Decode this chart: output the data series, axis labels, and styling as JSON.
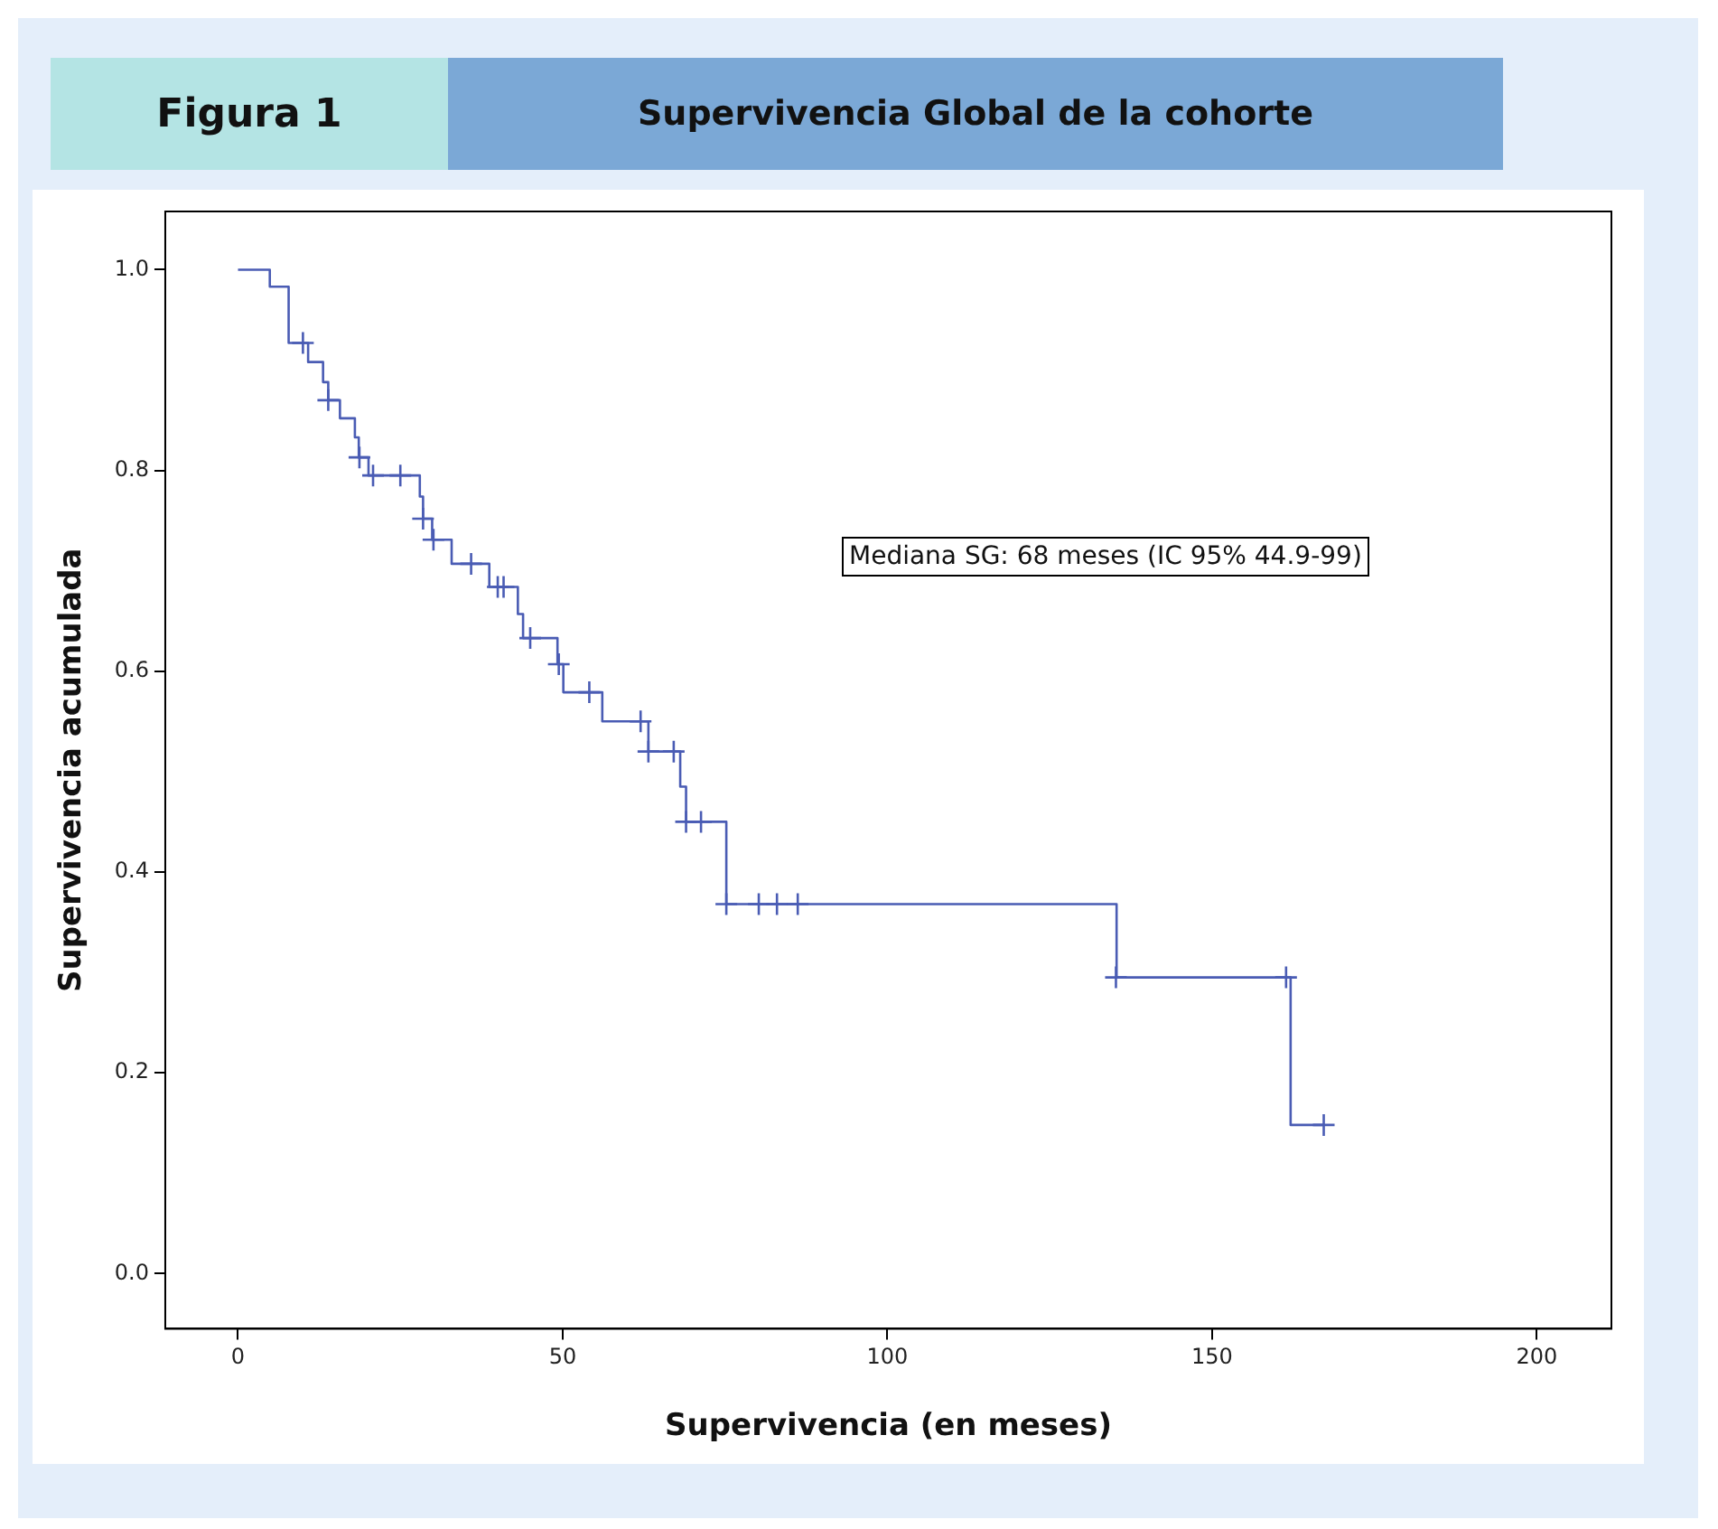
{
  "chart_data": {
    "type": "step",
    "title": "Supervivencia Global de la cohorte",
    "subtitle": "Figura 1",
    "xlabel": "Supervivencia (en meses)",
    "ylabel": "Supervivencia acumulada",
    "annotations": [
      "Mediana SG: 68 meses (IC 95% 44.9-99)"
    ],
    "series": [
      {
        "color": "#4a5cb4",
        "x": [
          0,
          4.9,
          7.8,
          10.8,
          13.1,
          13.9,
          15.7,
          18,
          18.6,
          20.1,
          28,
          28.5,
          29.9,
          32.9,
          38.7,
          43.1,
          43.9,
          49.2,
          50.1,
          56.1,
          63.2,
          68.1,
          69,
          75.2,
          135.3,
          162.1,
          167.2
        ],
        "values": [
          1,
          0.983,
          0.927,
          0.908,
          0.888,
          0.87,
          0.852,
          0.833,
          0.813,
          0.795,
          0.774,
          0.752,
          0.731,
          0.707,
          0.684,
          0.657,
          0.633,
          0.607,
          0.579,
          0.55,
          0.52,
          0.485,
          0.45,
          0.368,
          0.295,
          0.148,
          0.148
        ]
      },
      {
        "type": "scatter",
        "color": "#4a5cb4",
        "marker": "cross",
        "x": [
          10,
          13.9,
          18.7,
          20.8,
          25,
          28.5,
          30.1,
          35.9,
          40,
          40.9,
          45,
          49.4,
          54.1,
          62,
          63.2,
          67.1,
          69,
          71.3,
          75.2,
          80.2,
          83,
          86.2,
          135.2,
          161.4,
          167.2
        ],
        "values": [
          0.927,
          0.87,
          0.813,
          0.795,
          0.795,
          0.752,
          0.731,
          0.707,
          0.684,
          0.684,
          0.633,
          0.607,
          0.579,
          0.55,
          0.52,
          0.52,
          0.45,
          0.45,
          0.368,
          0.368,
          0.368,
          0.368,
          0.295,
          0.295,
          0.148
        ]
      }
    ],
    "xlim": [
      -11.2,
      211.5
    ],
    "xticks": [
      0,
      50,
      100,
      150,
      200
    ],
    "ylim": [
      -0.055,
      1.058
    ],
    "yticks": [
      {
        "value": 0,
        "label": "0.0"
      },
      {
        "value": 0.2,
        "label": "0.2"
      },
      {
        "value": 0.4,
        "label": "0.4"
      },
      {
        "value": 0.6,
        "label": "0.6"
      },
      {
        "value": 0.8,
        "label": "0.8"
      },
      {
        "value": 1,
        "label": "1.0"
      }
    ],
    "grid": false,
    "legend": false
  }
}
